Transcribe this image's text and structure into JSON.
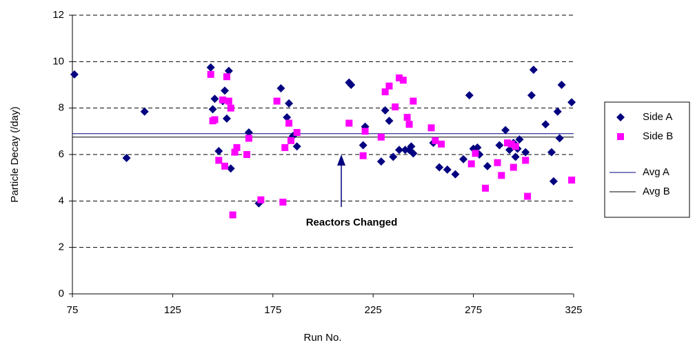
{
  "chart_data": {
    "type": "scatter",
    "xlabel": "Run No.",
    "ylabel": "Particle Decay (/day)",
    "xlim": [
      75,
      325
    ],
    "xticks": [
      75,
      125,
      175,
      225,
      275,
      325
    ],
    "ylim": [
      0,
      12
    ],
    "yticks": [
      0,
      2,
      4,
      6,
      8,
      10,
      12
    ],
    "grid": true,
    "legend": "right",
    "annotation": "Reactors Changed",
    "series": [
      {
        "name": "Side A",
        "color": "#000080",
        "marker": "diamond",
        "x": [
          76,
          102,
          111,
          144,
          145,
          146,
          148,
          150,
          151,
          152,
          153,
          154,
          163,
          168,
          179,
          182,
          183,
          185,
          187,
          213,
          214,
          220,
          221,
          229,
          231,
          233,
          235,
          238,
          241,
          243,
          244,
          245,
          255,
          258,
          262,
          266,
          270,
          273,
          275,
          277,
          278,
          282,
          288,
          291,
          293,
          295,
          296,
          297,
          298,
          301,
          304,
          305,
          311,
          314,
          315,
          317,
          318,
          319,
          324
        ],
        "values": [
          9.45,
          5.85,
          7.85,
          9.75,
          7.95,
          8.4,
          6.15,
          8.3,
          8.75,
          7.55,
          9.6,
          5.4,
          6.95,
          3.9,
          8.85,
          7.6,
          8.2,
          6.8,
          6.35,
          9.1,
          9.0,
          6.4,
          7.2,
          5.7,
          7.9,
          7.45,
          5.9,
          6.2,
          6.2,
          6.2,
          6.35,
          6.05,
          6.5,
          5.45,
          5.35,
          5.15,
          5.8,
          8.55,
          6.25,
          6.3,
          6.0,
          5.5,
          6.4,
          7.05,
          6.2,
          6.5,
          5.9,
          6.25,
          6.65,
          6.1,
          8.55,
          9.65,
          7.3,
          6.1,
          4.85,
          7.85,
          6.7,
          9.0,
          8.25
        ]
      },
      {
        "name": "Side B",
        "color": "#ff00ff",
        "marker": "square",
        "x": [
          144,
          145,
          146,
          148,
          150,
          151,
          152,
          153,
          154,
          155,
          156,
          157,
          162,
          163,
          169,
          177,
          180,
          181,
          183,
          184,
          187,
          213,
          220,
          221,
          229,
          231,
          233,
          236,
          238,
          240,
          242,
          243,
          245,
          254,
          256,
          259,
          274,
          276,
          281,
          287,
          289,
          292,
          294,
          295,
          296,
          301,
          302,
          324
        ],
        "values": [
          9.45,
          7.45,
          7.5,
          5.75,
          8.35,
          5.5,
          9.35,
          8.3,
          8.0,
          3.4,
          6.1,
          6.3,
          6.0,
          6.7,
          4.05,
          8.3,
          3.95,
          6.3,
          7.35,
          6.6,
          6.95,
          7.35,
          5.95,
          7.0,
          6.75,
          8.7,
          8.95,
          8.05,
          9.3,
          9.2,
          7.6,
          7.3,
          8.3,
          7.15,
          6.6,
          6.45,
          5.6,
          6.05,
          4.55,
          5.65,
          5.1,
          6.5,
          6.45,
          5.45,
          6.35,
          5.75,
          4.2,
          4.9
        ]
      }
    ],
    "lines": [
      {
        "name": "Avg A",
        "color": "#000080",
        "value": 6.9
      },
      {
        "name": "Avg B",
        "color": "#000000",
        "value": 6.75
      }
    ]
  }
}
